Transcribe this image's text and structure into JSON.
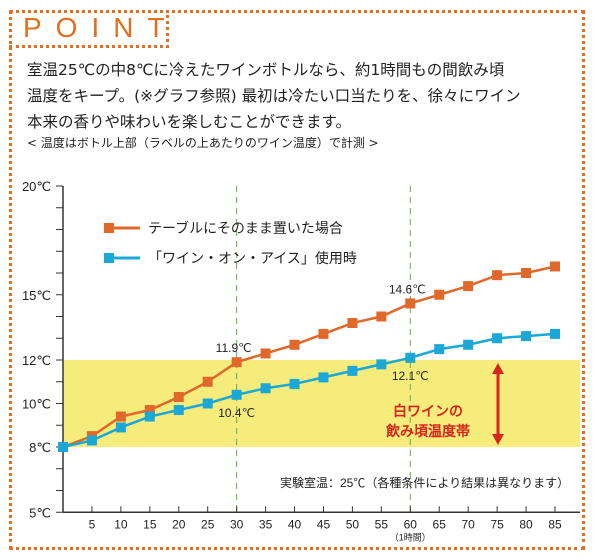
{
  "header": {
    "title": "POINT"
  },
  "description": {
    "lines": [
      "室温25℃の中8℃に冷えたワインボトルなら、約1時間もの間飲み頃",
      "温度をキープ。(※グラフ参照) 最初は冷たい口当たりを、徐々にワイン",
      "本来の香りや味わいを楽しむことができます。"
    ],
    "note": "< 温度はボトル上部（ラベルの上あたりのワイン温度）で計測 >"
  },
  "chart_data": {
    "type": "line",
    "x": [
      0,
      5,
      10,
      15,
      20,
      25,
      30,
      35,
      40,
      45,
      50,
      55,
      60,
      65,
      70,
      75,
      80,
      85
    ],
    "x_tick_labels": [
      "5",
      "10",
      "15",
      "20",
      "25",
      "30",
      "35",
      "40",
      "45",
      "50",
      "55",
      "60",
      "65",
      "70",
      "75",
      "80",
      "85"
    ],
    "x_sublabel": "（1時間）",
    "y_ticks": [
      {
        "v": 5,
        "label": "5℃"
      },
      {
        "v": 8,
        "label": "8℃"
      },
      {
        "v": 10,
        "label": "10℃"
      },
      {
        "v": 12,
        "label": "12℃"
      },
      {
        "v": 15,
        "label": "15℃"
      },
      {
        "v": 20,
        "label": "20℃"
      }
    ],
    "ylim": [
      5,
      20
    ],
    "xlim": [
      0,
      88
    ],
    "series": [
      {
        "name": "テーブルにそのまま置いた場合",
        "color": "#e0682a",
        "values": [
          8.0,
          8.5,
          9.4,
          9.7,
          10.3,
          11.0,
          11.9,
          12.3,
          12.7,
          13.2,
          13.7,
          14.0,
          14.6,
          15.0,
          15.4,
          15.9,
          16.0,
          16.3
        ]
      },
      {
        "name": "「ワイン・オン・アイス」使用時",
        "color": "#1ba8d6",
        "values": [
          8.0,
          8.3,
          8.9,
          9.4,
          9.7,
          10.0,
          10.4,
          10.7,
          10.9,
          11.2,
          11.5,
          11.8,
          12.1,
          12.5,
          12.7,
          13.0,
          13.1,
          13.2
        ]
      }
    ],
    "band": {
      "from": 8,
      "to": 12,
      "color": "#f6ec7c",
      "label_lines": [
        "白ワインの",
        "飲み頃温度帯"
      ],
      "label_color": "#d9261c"
    },
    "reference_lines": [
      30,
      60
    ],
    "annotations": [
      {
        "x": 30,
        "series": 0,
        "text": "11.9℃"
      },
      {
        "x": 30,
        "series": 1,
        "text": "10.4℃"
      },
      {
        "x": 60,
        "series": 0,
        "text": "14.6℃"
      },
      {
        "x": 60,
        "series": 1,
        "text": "12.1℃"
      }
    ],
    "footnote": "実験室温：25℃（各種条件により結果は異なります）"
  }
}
